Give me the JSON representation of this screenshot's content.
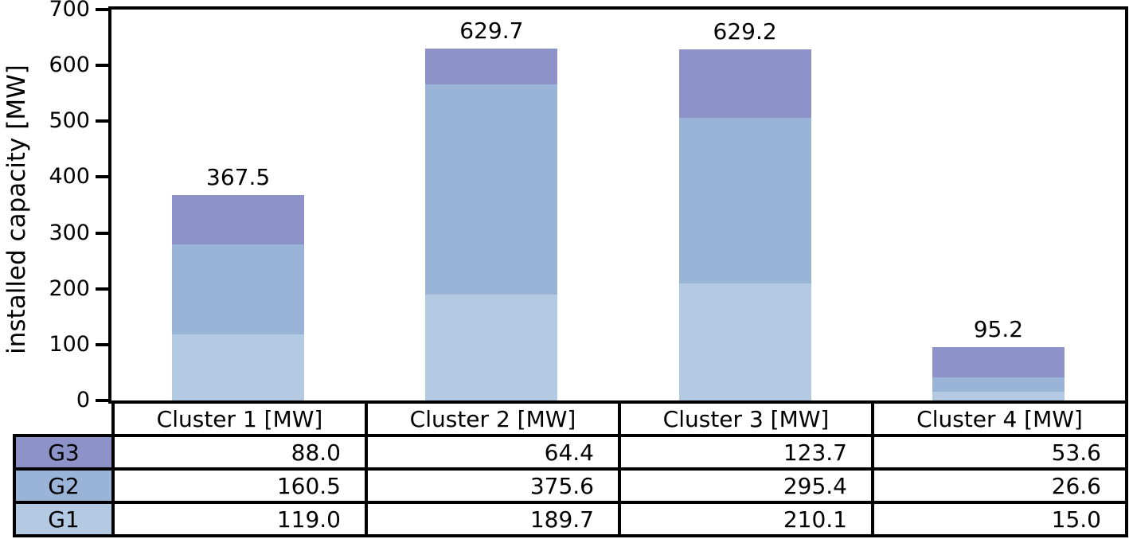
{
  "chart_data": {
    "type": "bar",
    "stacked": true,
    "title": "",
    "ylabel": "installed capacity [MW]",
    "xlabel": "",
    "ylim": [
      0,
      700
    ],
    "yticks": [
      0,
      100,
      200,
      300,
      400,
      500,
      600,
      700
    ],
    "grid": false,
    "legend_position": "table-row-headers",
    "categories": [
      "Cluster 1 [MW]",
      "Cluster 2 [MW]",
      "Cluster 3 [MW]",
      "Cluster 4 [MW]"
    ],
    "series": [
      {
        "name": "G1",
        "color": "#b3cae2",
        "values": [
          119.0,
          189.7,
          210.1,
          15.0
        ]
      },
      {
        "name": "G2",
        "color": "#9ab4d7",
        "values": [
          160.5,
          375.6,
          295.4,
          26.6
        ]
      },
      {
        "name": "G3",
        "color": "#8d93c8",
        "values": [
          88.0,
          64.4,
          123.7,
          53.6
        ]
      }
    ],
    "bar_total_labels": [
      "367.5",
      "629.7",
      "629.2",
      "95.2"
    ],
    "table": {
      "column_headers": [
        "Cluster 1 [MW]",
        "Cluster 2 [MW]",
        "Cluster 3 [MW]",
        "Cluster 4 [MW]"
      ],
      "rows": [
        {
          "label": "G3",
          "color": "#8d93c8",
          "values": [
            "88.0",
            "64.4",
            "123.7",
            "53.6"
          ]
        },
        {
          "label": "G2",
          "color": "#9ab4d7",
          "values": [
            "160.5",
            "375.6",
            "295.4",
            "26.6"
          ]
        },
        {
          "label": "G1",
          "color": "#b3cae2",
          "values": [
            "119.0",
            "189.7",
            "210.1",
            "15.0"
          ]
        }
      ]
    },
    "colors": {
      "axis": "#000000",
      "text": "#000000",
      "background": "#ffffff"
    }
  }
}
